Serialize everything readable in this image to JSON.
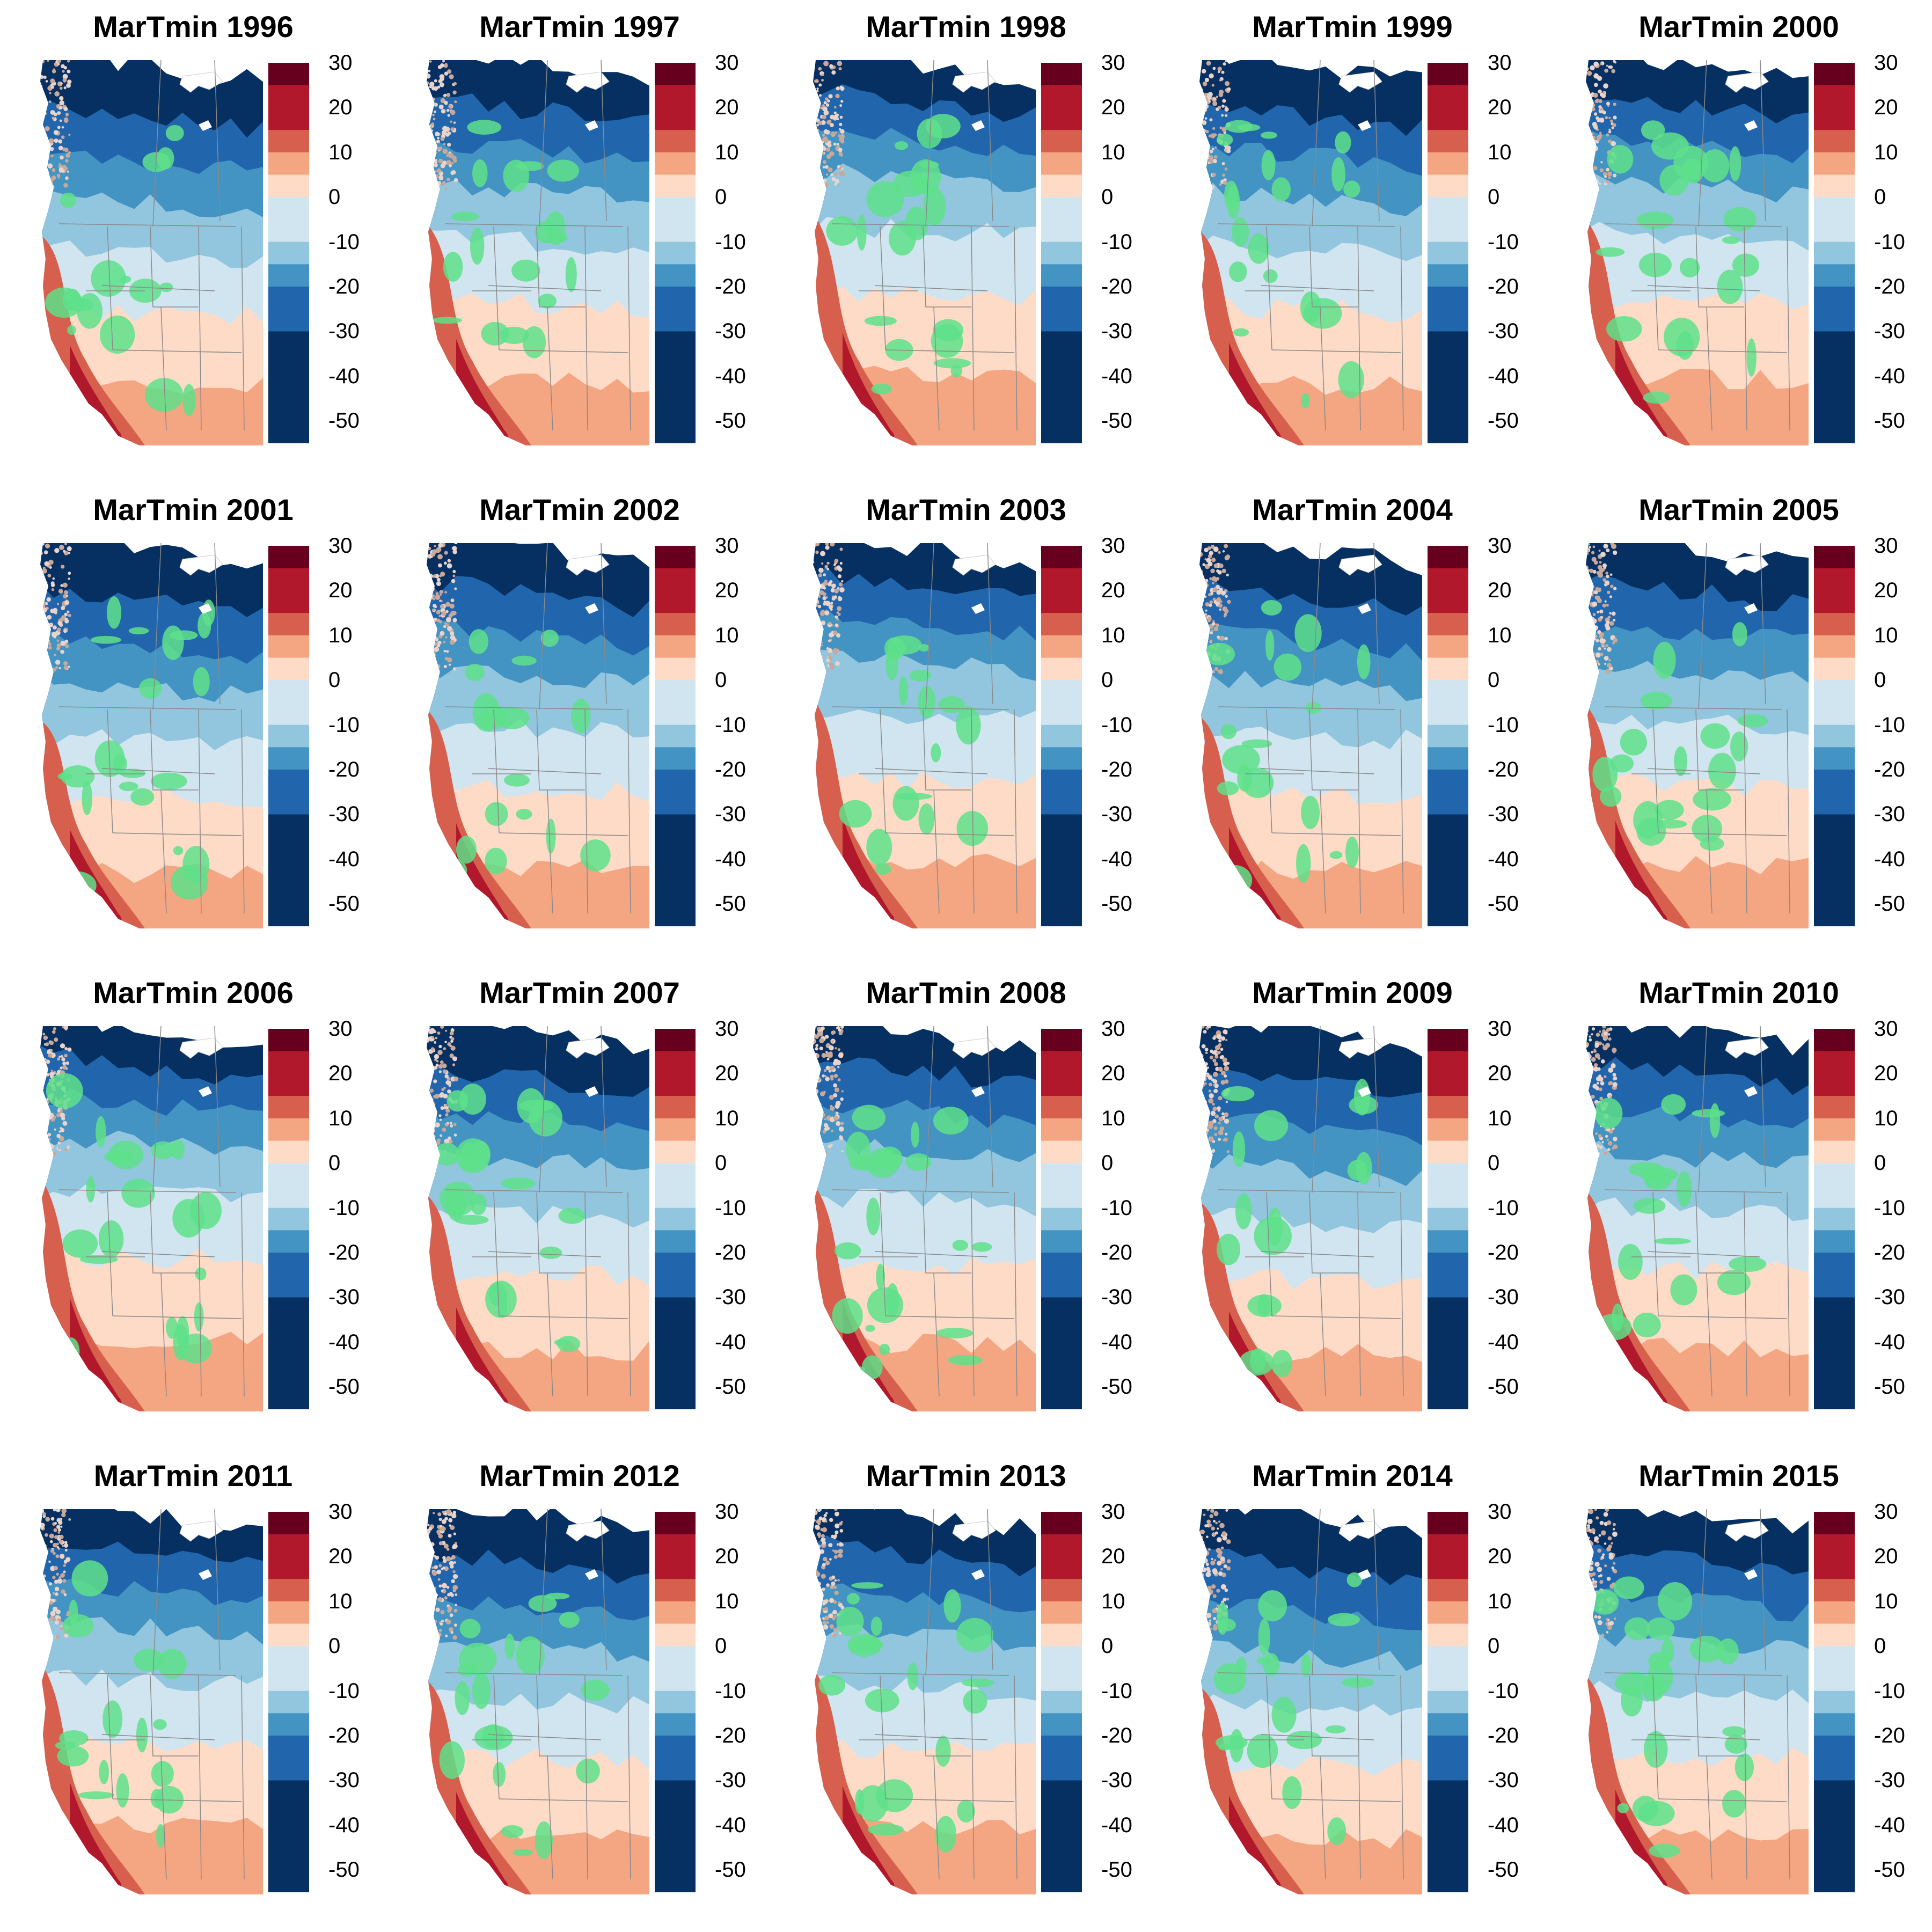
{
  "panels": [
    {
      "title": "MarTmin 1996",
      "year": 1996
    },
    {
      "title": "MarTmin 1997",
      "year": 1997
    },
    {
      "title": "MarTmin 1998",
      "year": 1998
    },
    {
      "title": "MarTmin 1999",
      "year": 1999
    },
    {
      "title": "MarTmin 2000",
      "year": 2000
    },
    {
      "title": "MarTmin 2001",
      "year": 2001
    },
    {
      "title": "MarTmin 2002",
      "year": 2002
    },
    {
      "title": "MarTmin 2003",
      "year": 2003
    },
    {
      "title": "MarTmin 2004",
      "year": 2004
    },
    {
      "title": "MarTmin 2005",
      "year": 2005
    },
    {
      "title": "MarTmin 2006",
      "year": 2006
    },
    {
      "title": "MarTmin 2007",
      "year": 2007
    },
    {
      "title": "MarTmin 2008",
      "year": 2008
    },
    {
      "title": "MarTmin 2009",
      "year": 2009
    },
    {
      "title": "MarTmin 2010",
      "year": 2010
    },
    {
      "title": "MarTmin 2011",
      "year": 2011
    },
    {
      "title": "MarTmin 2012",
      "year": 2012
    },
    {
      "title": "MarTmin 2013",
      "year": 2013
    },
    {
      "title": "MarTmin 2014",
      "year": 2014
    },
    {
      "title": "MarTmin 2015",
      "year": 2015
    }
  ],
  "legend": {
    "min": -55,
    "max": 30,
    "tick_labels": [
      "30",
      "20",
      "10",
      "0",
      "-10",
      "-20",
      "-30",
      "-40",
      "-50"
    ],
    "tick_values": [
      30,
      20,
      10,
      0,
      -10,
      -20,
      -30,
      -40,
      -50
    ],
    "bins": [
      {
        "from": 25,
        "to": 30,
        "color": "#67001f"
      },
      {
        "from": 15,
        "to": 25,
        "color": "#b2182b"
      },
      {
        "from": 10,
        "to": 15,
        "color": "#d6604d"
      },
      {
        "from": 5,
        "to": 10,
        "color": "#f4a582"
      },
      {
        "from": 0,
        "to": 5,
        "color": "#fddbc7"
      },
      {
        "from": -10,
        "to": 0,
        "color": "#d1e5f0"
      },
      {
        "from": -15,
        "to": -10,
        "color": "#92c5de"
      },
      {
        "from": -20,
        "to": -15,
        "color": "#4393c3"
      },
      {
        "from": -30,
        "to": -20,
        "color": "#2166ac"
      },
      {
        "from": -55,
        "to": -30,
        "color": "#053061"
      }
    ]
  },
  "colors": {
    "overlay": "#5ee08a",
    "boundary": "#8a8a8a",
    "terrain": "#c9a89a",
    "ice": "#ffffff"
  },
  "chart_data": {
    "type": "heatmap",
    "variable": "MarTmin",
    "years": [
      1996,
      1997,
      1998,
      1999,
      2000,
      2001,
      2002,
      2003,
      2004,
      2005,
      2006,
      2007,
      2008,
      2009,
      2010,
      2011,
      2012,
      2013,
      2014,
      2015
    ],
    "legend_range": [
      -55,
      30
    ],
    "legend_ticks": [
      30,
      20,
      10,
      0,
      -10,
      -20,
      -30,
      -40,
      -50
    ]
  }
}
